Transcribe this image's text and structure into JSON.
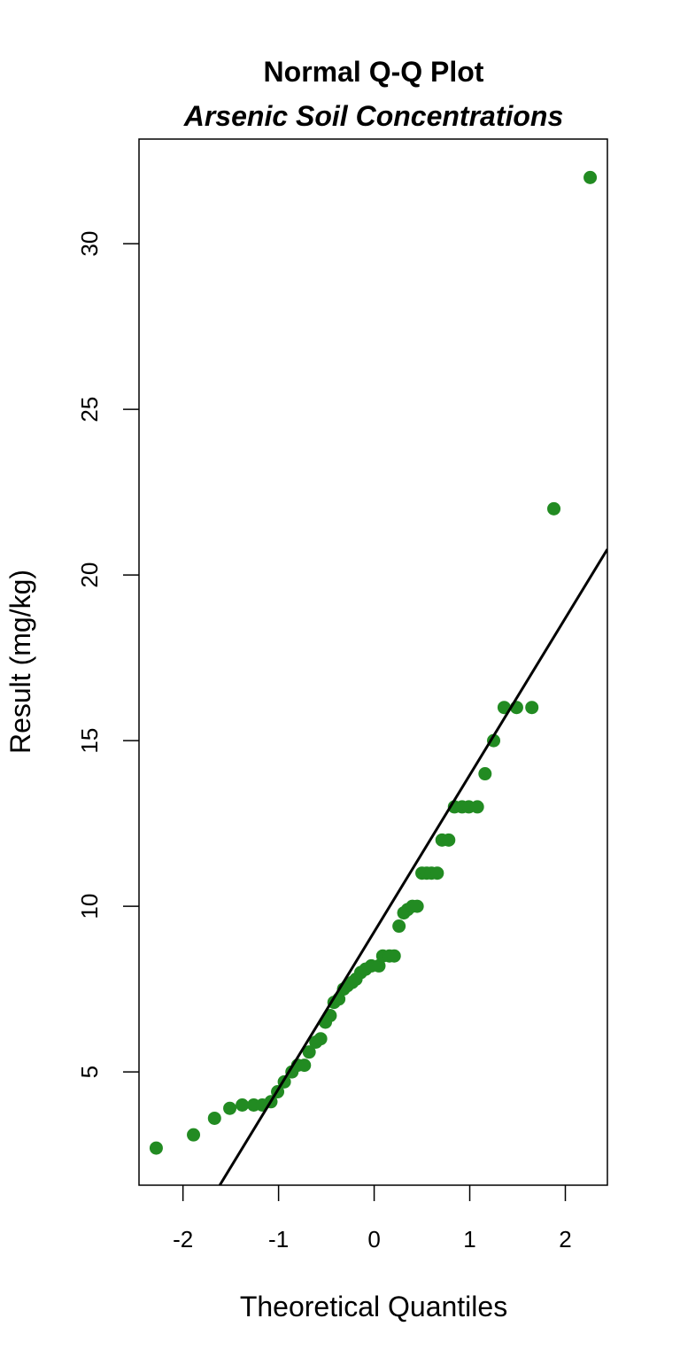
{
  "chart_data": {
    "type": "scatter",
    "title": "Normal Q-Q Plot",
    "subtitle": "Arsenic Soil Concentrations",
    "xlabel": "Theoretical Quantiles",
    "ylabel": "Result (mg/kg)",
    "color": "#228b22",
    "x": [
      -2.28,
      -1.89,
      -1.67,
      -1.51,
      -1.38,
      -1.26,
      -1.17,
      -1.08,
      -1.01,
      -0.94,
      -0.86,
      -0.8,
      -0.73,
      -0.68,
      -0.61,
      -0.56,
      -0.51,
      -0.46,
      -0.42,
      -0.37,
      -0.32,
      -0.28,
      -0.23,
      -0.19,
      -0.14,
      -0.09,
      -0.03,
      0.05,
      0.09,
      0.16,
      0.21,
      0.26,
      0.31,
      0.35,
      0.4,
      0.45,
      0.5,
      0.55,
      0.6,
      0.66,
      0.71,
      0.78,
      0.84,
      0.92,
      0.99,
      1.08,
      1.16,
      1.25,
      1.36,
      1.49,
      1.65,
      1.88,
      2.26
    ],
    "values": [
      2.7,
      3.1,
      3.6,
      3.9,
      4.0,
      4.0,
      4.0,
      4.1,
      4.4,
      4.7,
      5.0,
      5.2,
      5.2,
      5.6,
      5.9,
      6.0,
      6.5,
      6.7,
      7.1,
      7.2,
      7.5,
      7.6,
      7.7,
      7.8,
      8.0,
      8.1,
      8.2,
      8.2,
      8.5,
      8.5,
      8.5,
      9.4,
      9.8,
      9.9,
      10.0,
      10.0,
      11.0,
      11.0,
      11.0,
      11.0,
      12.0,
      12.0,
      13.0,
      13.0,
      13.0,
      13.0,
      14.0,
      15.0,
      16.0,
      16.0,
      16.0,
      22.0,
      32.0
    ],
    "reference_line": {
      "color": "#000000",
      "x": [
        -1.615,
        2.44
      ],
      "values": [
        1.58,
        20.78
      ]
    },
    "xlim": [
      -2.46,
      2.44
    ],
    "ylim": [
      1.58,
      33.16
    ],
    "xticks": [
      -2,
      -1,
      0,
      1,
      2
    ],
    "yticks": [
      5,
      10,
      15,
      20,
      25,
      30
    ]
  }
}
